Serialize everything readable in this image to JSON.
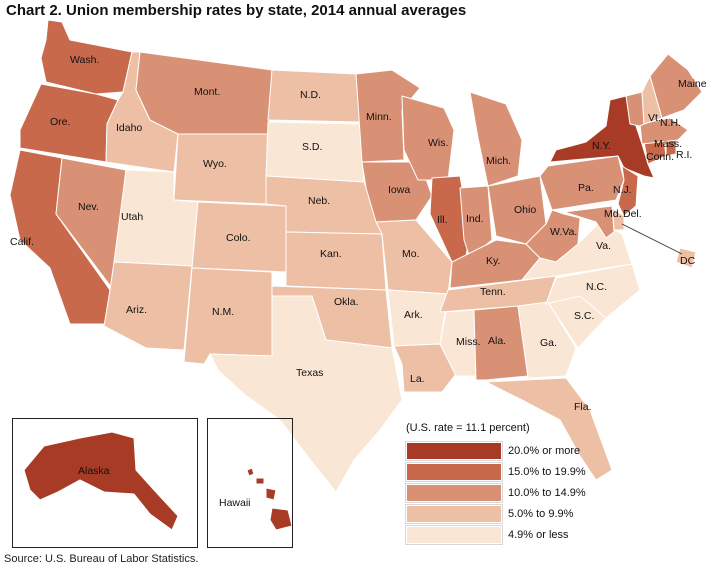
{
  "title": "Chart 2. Union membership rates by state, 2014 annual averages",
  "source": "Source: U.S. Bureau of Labor Statistics.",
  "legend": {
    "note": "(U.S. rate = 11.1 percent)",
    "items": [
      {
        "label": "20.0% or more",
        "color": "#a83b25"
      },
      {
        "label": "15.0% to 19.9%",
        "color": "#c8694c"
      },
      {
        "label": "10.0% to 14.9%",
        "color": "#d99176"
      },
      {
        "label": "5.0% to 9.9%",
        "color": "#edbfa4"
      },
      {
        "label": "4.9% or less",
        "color": "#fae6d4"
      }
    ]
  },
  "states": {
    "wa": {
      "label": "Wash.",
      "category": 1
    },
    "or": {
      "label": "Ore.",
      "category": 1
    },
    "ca": {
      "label": "Calif.",
      "category": 1
    },
    "nv": {
      "label": "Nev.",
      "category": 2
    },
    "id": {
      "label": "Idaho",
      "category": 3
    },
    "mt": {
      "label": "Mont.",
      "category": 2
    },
    "wy": {
      "label": "Wyo.",
      "category": 3
    },
    "ut": {
      "label": "Utah",
      "category": 4
    },
    "co": {
      "label": "Colo.",
      "category": 3
    },
    "az": {
      "label": "Ariz.",
      "category": 3
    },
    "nm": {
      "label": "N.M.",
      "category": 3
    },
    "nd": {
      "label": "N.D.",
      "category": 3
    },
    "sd": {
      "label": "S.D.",
      "category": 4
    },
    "ne": {
      "label": "Neb.",
      "category": 3
    },
    "ks": {
      "label": "Kan.",
      "category": 3
    },
    "ok": {
      "label": "Okla.",
      "category": 3
    },
    "tx": {
      "label": "Texas",
      "category": 4
    },
    "mn": {
      "label": "Minn.",
      "category": 2
    },
    "ia": {
      "label": "Iowa",
      "category": 2
    },
    "mo": {
      "label": "Mo.",
      "category": 3
    },
    "ar": {
      "label": "Ark.",
      "category": 4
    },
    "la": {
      "label": "La.",
      "category": 3
    },
    "wi": {
      "label": "Wis.",
      "category": 2
    },
    "il": {
      "label": "Ill.",
      "category": 1
    },
    "mi": {
      "label": "Mich.",
      "category": 2
    },
    "in": {
      "label": "Ind.",
      "category": 2
    },
    "oh": {
      "label": "Ohio",
      "category": 2
    },
    "ky": {
      "label": "Ky.",
      "category": 2
    },
    "tn": {
      "label": "Tenn.",
      "category": 3
    },
    "ms": {
      "label": "Miss.",
      "category": 4
    },
    "al": {
      "label": "Ala.",
      "category": 2
    },
    "ga": {
      "label": "Ga.",
      "category": 4
    },
    "fl": {
      "label": "Fla.",
      "category": 3
    },
    "sc": {
      "label": "S.C.",
      "category": 4
    },
    "nc": {
      "label": "N.C.",
      "category": 4
    },
    "va": {
      "label": "Va.",
      "category": 4
    },
    "wv": {
      "label": "W.Va.",
      "category": 2
    },
    "pa": {
      "label": "Pa.",
      "category": 2
    },
    "ny": {
      "label": "N.Y.",
      "category": 0
    },
    "nj": {
      "label": "N.J.",
      "category": 1
    },
    "de": {
      "label": "Del.",
      "category": 3
    },
    "md": {
      "label": "Md.",
      "category": 2
    },
    "dc": {
      "label": "DC",
      "category": 3
    },
    "ct": {
      "label": "Conn.",
      "category": 1
    },
    "ri": {
      "label": "R.I.",
      "category": 1
    },
    "ma": {
      "label": "Mass.",
      "category": 2
    },
    "vt": {
      "label": "Vt.",
      "category": 2
    },
    "nh": {
      "label": "N.H.",
      "category": 3
    },
    "me": {
      "label": "Maine",
      "category": 2
    },
    "ak": {
      "label": "Alaska",
      "category": 0
    },
    "hi": {
      "label": "Hawaii",
      "category": 0
    }
  }
}
